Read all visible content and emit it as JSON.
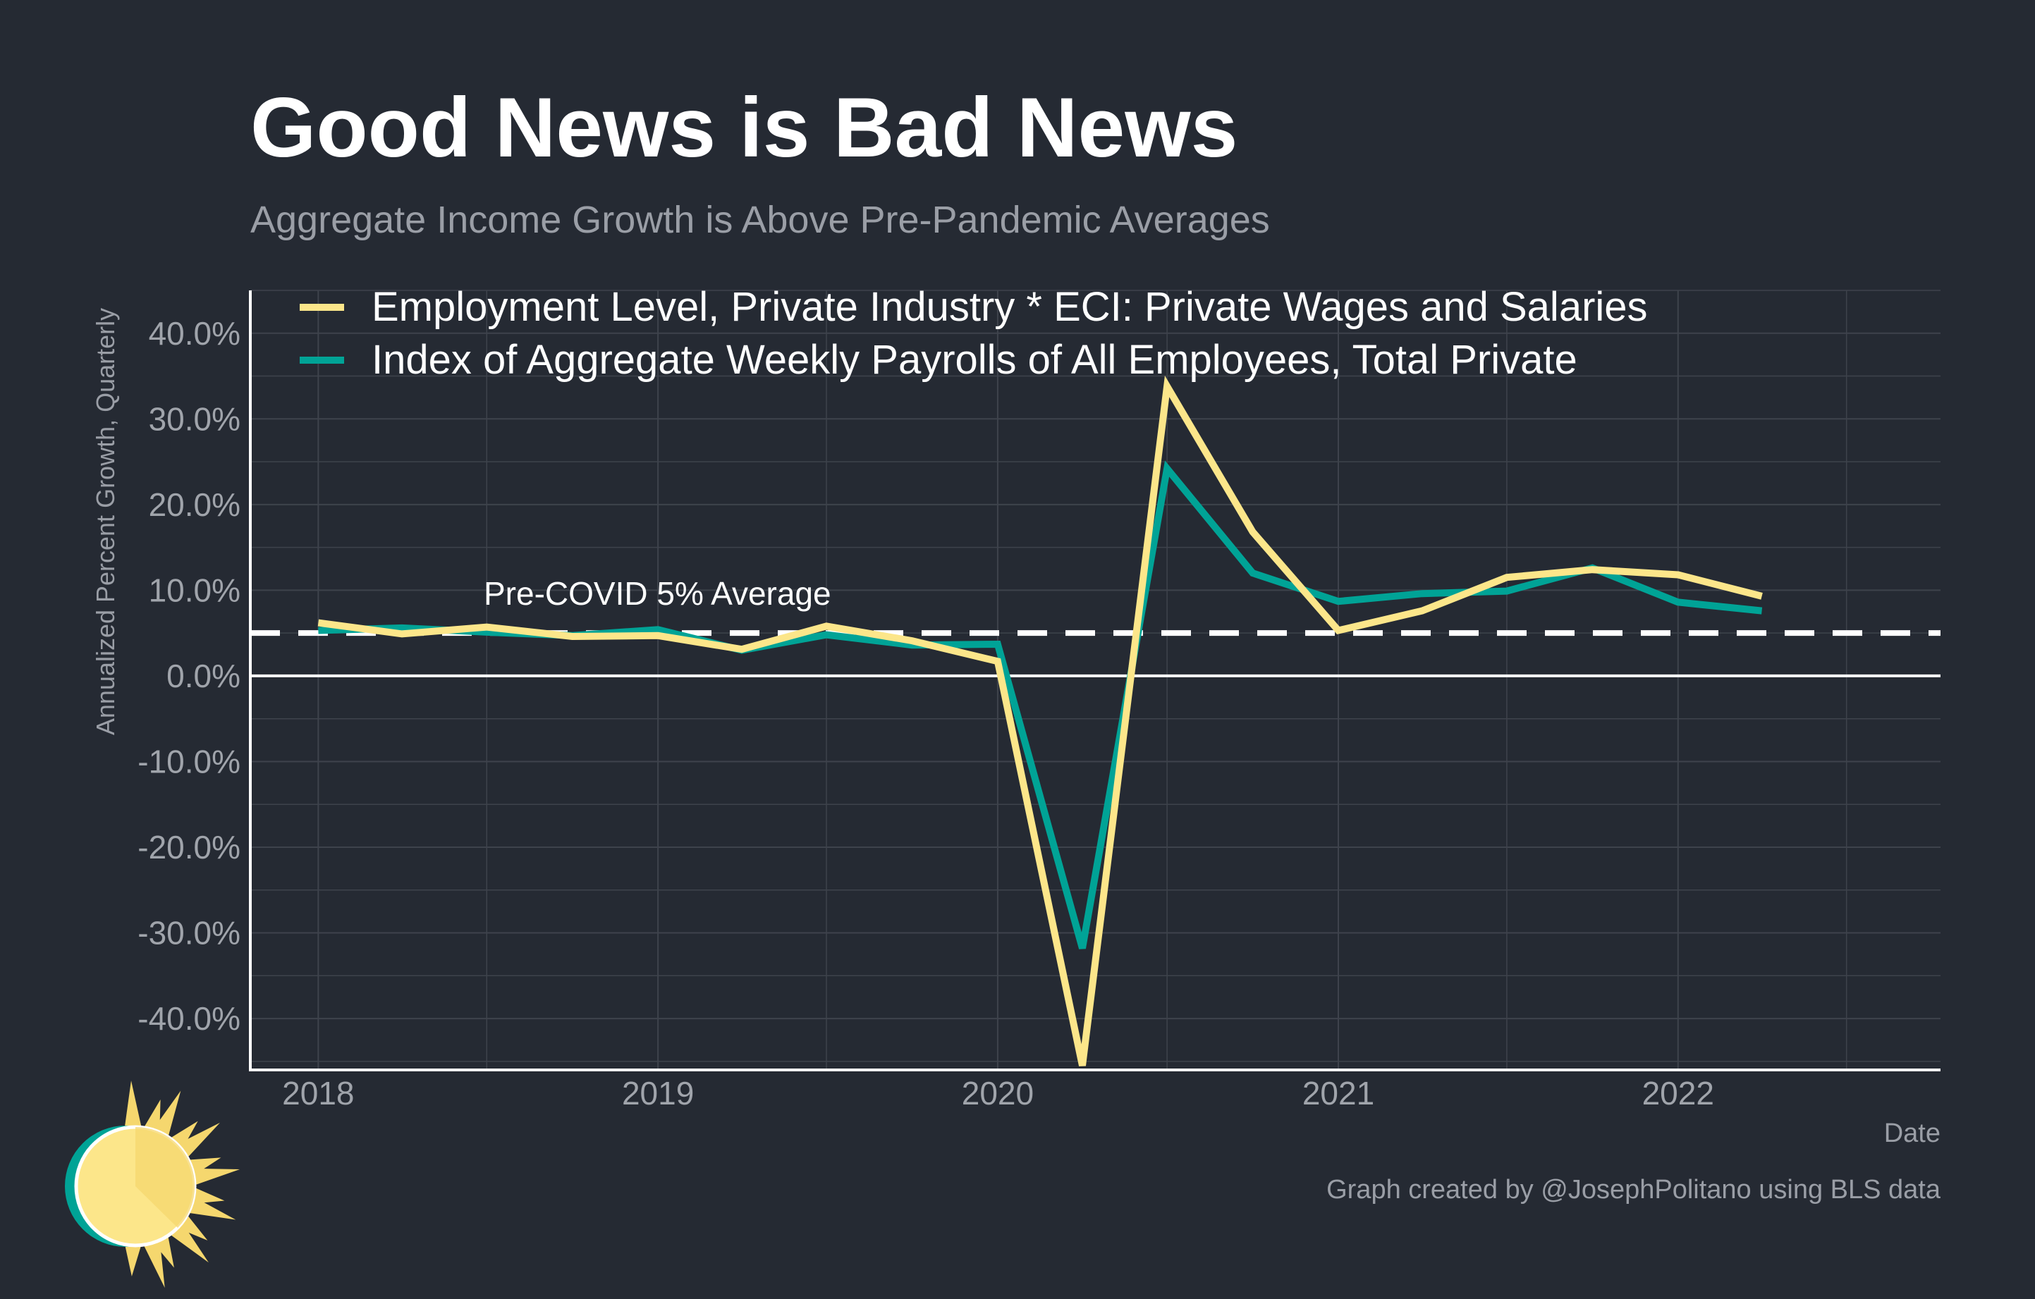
{
  "chart_data": {
    "type": "line",
    "title": "Good News is Bad News",
    "subtitle": "Aggregate Income Growth is Above Pre-Pandemic Averages",
    "xlabel": "Date",
    "ylabel": "Annualized Percent Growth, Quarterly",
    "caption": "Graph created by @JosephPolitano using BLS data",
    "x_ticks": [
      "2018",
      "2019",
      "2020",
      "2021",
      "2022"
    ],
    "y_ticks": [
      "40.0%",
      "30.0%",
      "20.0%",
      "10.0%",
      "0.0%",
      "-10.0%",
      "-20.0%",
      "-30.0%",
      "-40.0%"
    ],
    "ylim": [
      -46,
      45
    ],
    "xlim": [
      "2017-10-20",
      "2022-10-10"
    ],
    "grid": true,
    "legend_position": "top-left",
    "x": [
      "2018-01-01",
      "2018-04-01",
      "2018-07-01",
      "2018-10-01",
      "2019-01-01",
      "2019-04-01",
      "2019-07-01",
      "2019-10-01",
      "2020-01-01",
      "2020-04-01",
      "2020-07-01",
      "2020-10-01",
      "2021-01-01",
      "2021-04-01",
      "2021-07-01",
      "2021-10-01",
      "2022-01-01",
      "2022-04-01"
    ],
    "series": [
      {
        "name": "Employment Level, Private Industry * ECI: Private Wages and Salaries",
        "color": "#fce68a",
        "values": [
          6.2,
          4.9,
          5.7,
          4.6,
          4.7,
          3.1,
          5.8,
          4.1,
          1.7,
          -45.5,
          33.8,
          16.8,
          5.3,
          7.6,
          11.5,
          12.4,
          11.8,
          9.3
        ]
      },
      {
        "name": "Index of Aggregate Weekly Payrolls of All Employees, Total Private",
        "color": "#00a396",
        "values": [
          5.3,
          5.6,
          5.1,
          4.7,
          5.4,
          3.0,
          4.8,
          3.6,
          3.7,
          -31.8,
          24.2,
          12.0,
          8.7,
          9.6,
          9.9,
          12.6,
          8.6,
          7.6
        ]
      }
    ],
    "reference_lines": [
      {
        "value": 5,
        "style": "dashed",
        "color": "#ffffff",
        "label": "Pre-COVID 5% Average"
      },
      {
        "value": 0,
        "style": "solid",
        "color": "#ffffff",
        "label": ""
      }
    ]
  },
  "colors": {
    "background": "#252a33",
    "grid": "#3e434c",
    "axis": "#ffffff",
    "logo_ring": "#00a396",
    "logo_sun": "#fce68a",
    "logo_rays": "#f5d76e"
  },
  "icons": {
    "logo": "sun-logo-icon"
  }
}
